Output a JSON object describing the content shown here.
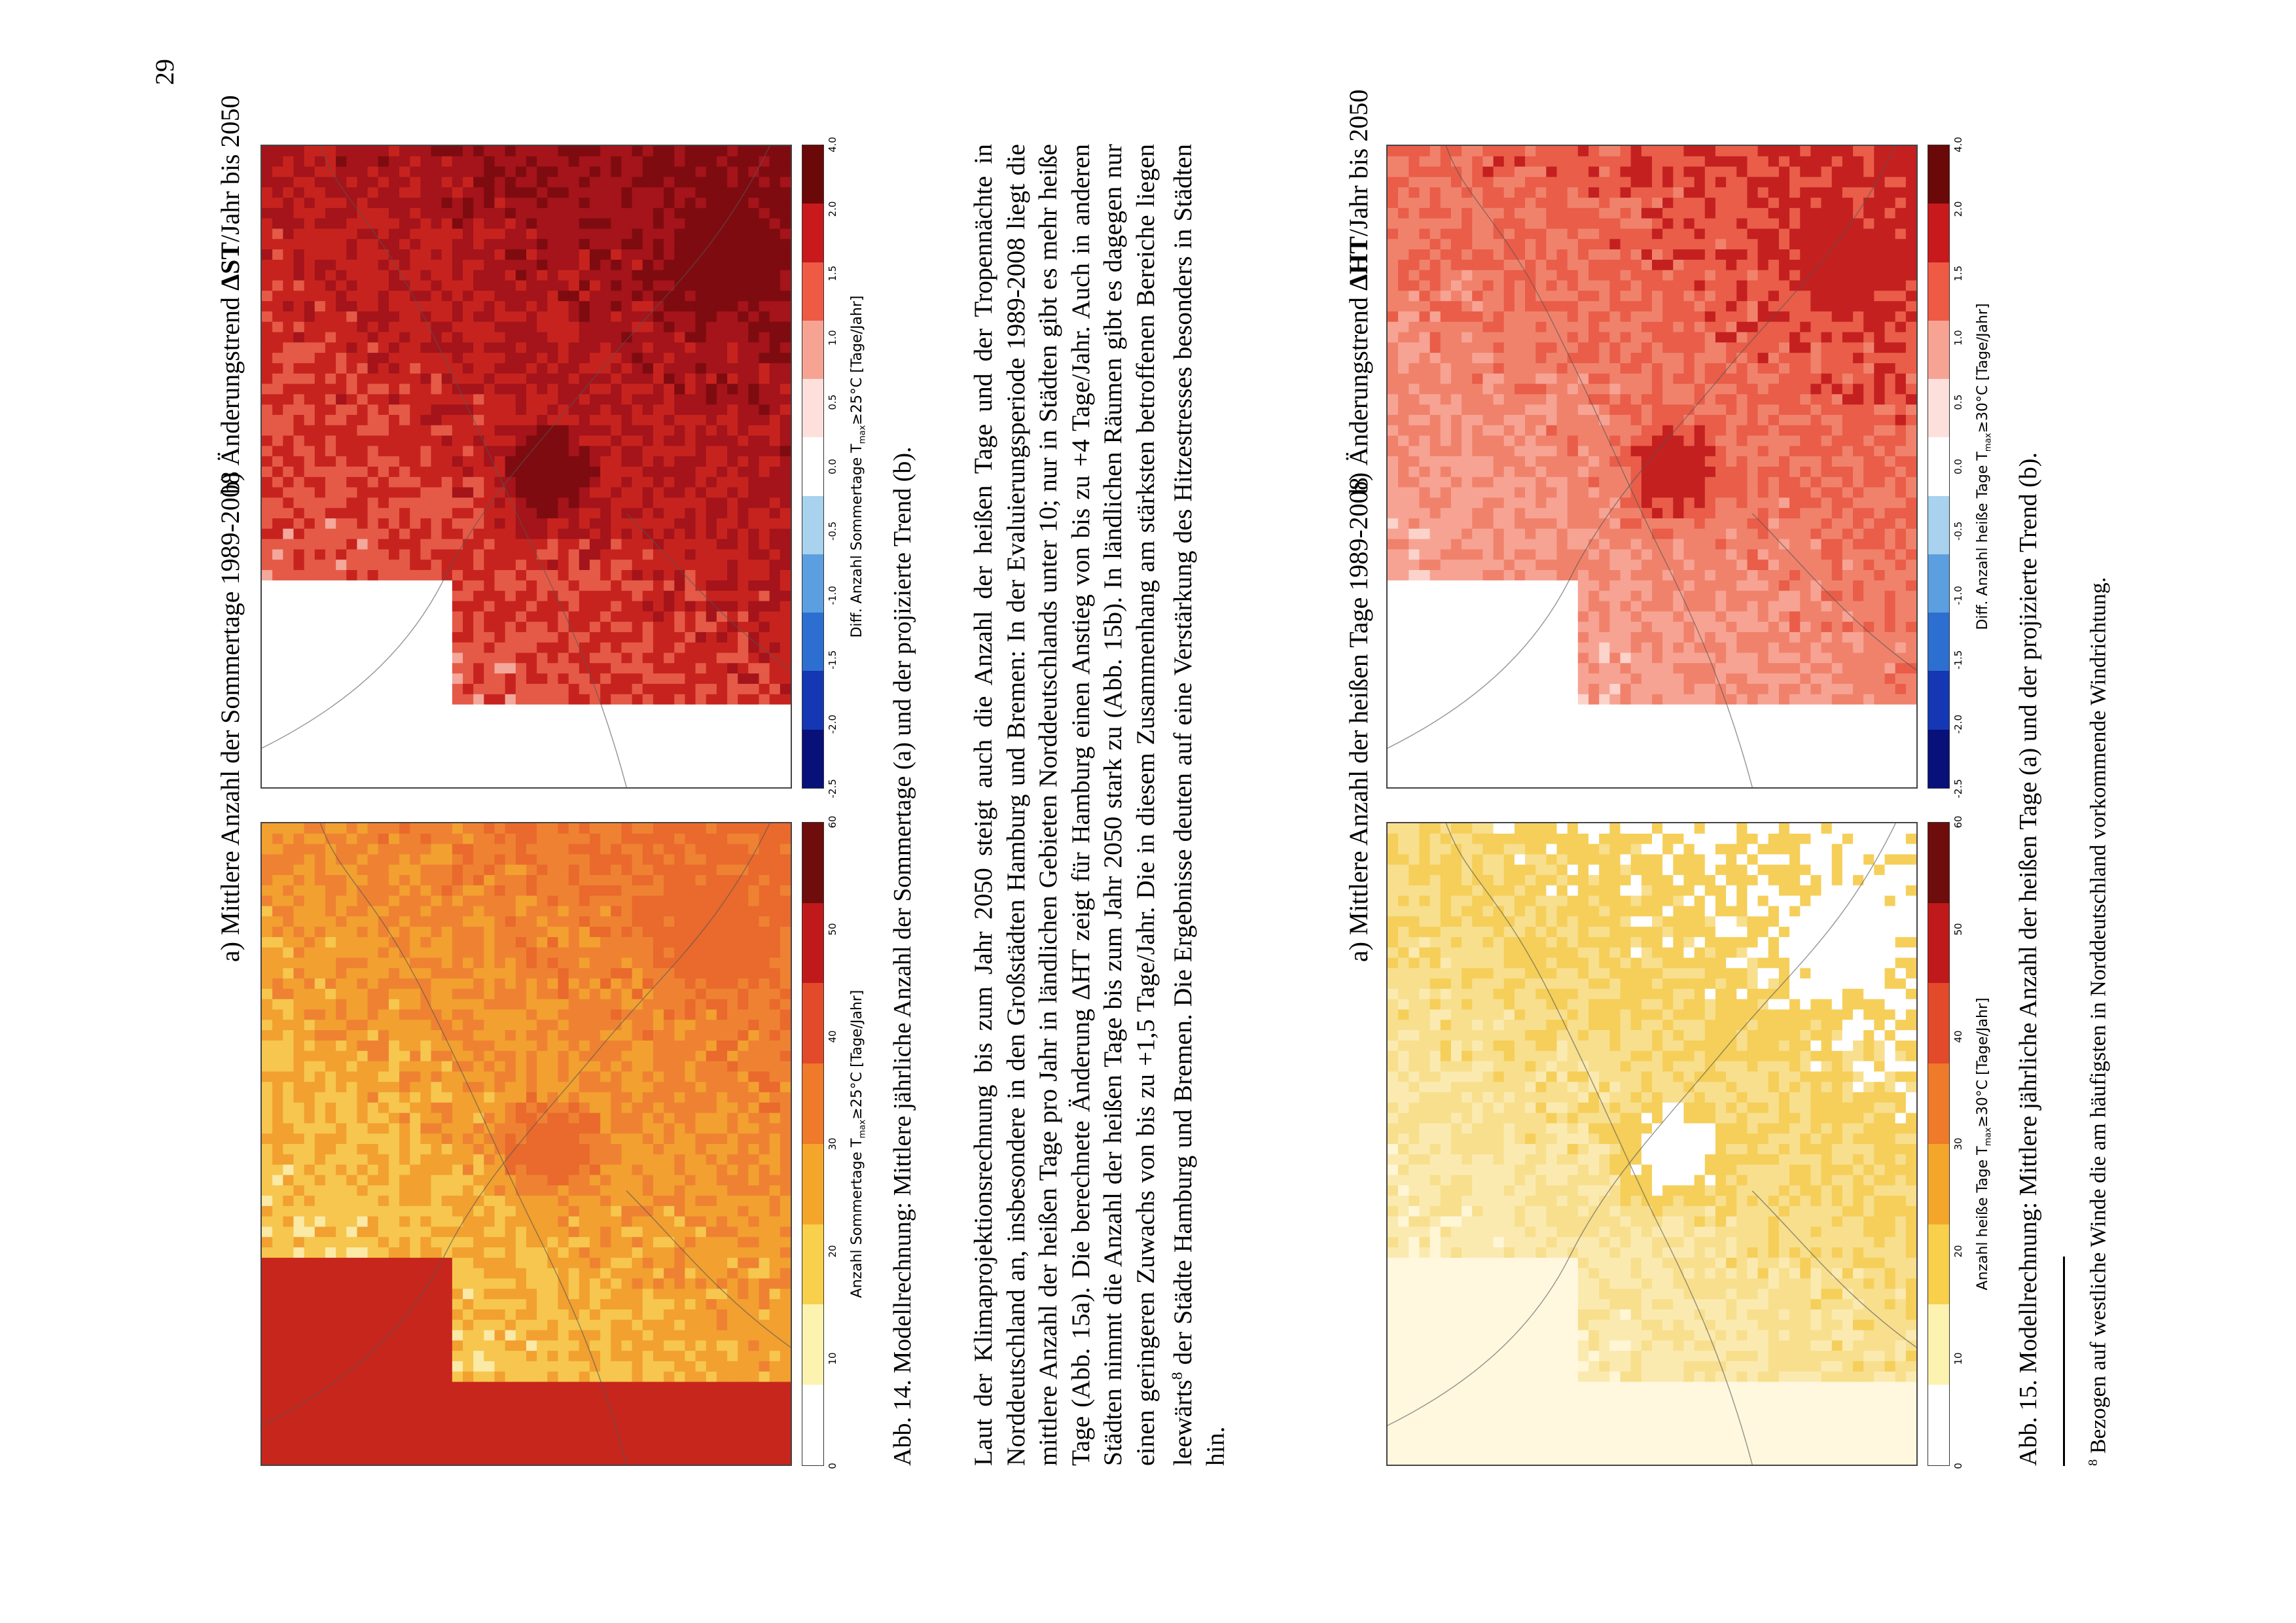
{
  "page_number": "29",
  "fig14": {
    "a_title": "a) Mittlere Anzahl der Sommertage 1989-2008",
    "b_title_pre": "b) Änderungstrend ",
    "b_title_delta": "ΔST",
    "b_title_post": "/Jahr bis 2050",
    "a_colorbar": {
      "label_pre": "Anzahl Sommertage T",
      "label_sub": "max",
      "label_post": "≥25°C [Tage/Jahr]",
      "ticks": [
        "0",
        "10",
        "20",
        "30",
        "40",
        "50",
        "60"
      ],
      "colors": [
        "#ffffff",
        "#fdf3b0",
        "#f8d04c",
        "#f4a62a",
        "#ef7a2a",
        "#e24a2a",
        "#c0191b",
        "#6f0c0c"
      ]
    },
    "b_colorbar": {
      "label_pre": "Diff. Anzahl Sommertage T",
      "label_sub": "max",
      "label_post": "≥25°C [Tage/Jahr]",
      "ticks": [
        "-2.5",
        "-2.0",
        "-1.5",
        "-1.0",
        "-0.5",
        "0.0",
        "0.5",
        "1.0",
        "1.5",
        "2.0",
        "4.0"
      ],
      "colors": [
        "#08107a",
        "#1537b4",
        "#2d6fd0",
        "#5c9fe0",
        "#a8d2ee",
        "#ffffff",
        "#fde0dc",
        "#f7a393",
        "#ef5a45",
        "#c8191c",
        "#6b0808"
      ]
    },
    "caption": "Abb. 14. Modellrechnung: Mittlere jährliche Anzahl der Sommertage (a) und der projizierte Trend (b)."
  },
  "body": {
    "p1": "Laut der Klimaprojektionsrechnung bis zum Jahr 2050 steigt auch die Anzahl der heißen Tage und der Tropennächte in Norddeutschland an, insbesondere in den Großstädten Hamburg und Bremen: In der Evaluierungsperiode 1989-2008 liegt die mittlere Anzahl der heißen Tage pro Jahr in ländlichen Gebieten Norddeutschlands unter 10; nur in Städten gibt es mehr heiße Tage (Abb. 15a). Die berechnete Änderung ΔHT zeigt für Hamburg einen Anstieg von bis zu +4 Tage/Jahr. Auch in anderen Städten nimmt die Anzahl der heißen Tage bis zum Jahr 2050 stark zu (Abb. 15b). In ländlichen Räumen gibt es dagegen nur einen geringeren Zuwachs von bis zu +1,5 Tage/Jahr. Die in diesem Zusammenhang am stärksten betroffenen Bereiche liegen leewärts",
    "p1_sup": "8",
    "p1_end": " der Städte Hamburg und Bremen. Die Ergebnisse deuten auf eine Verstärkung des Hitzestresses besonders in Städten hin."
  },
  "fig15": {
    "a_title": "a) Mittlere Anzahl der heißen Tage 1989-2008",
    "b_title_pre": "b) Änderungstrend ",
    "b_title_delta": "ΔHT",
    "b_title_post": "/Jahr bis 2050",
    "a_colorbar": {
      "label_pre": "Anzahl heiße Tage T",
      "label_sub": "max",
      "label_post": "≥30°C [Tage/Jahr]",
      "ticks": [
        "0",
        "10",
        "20",
        "30",
        "40",
        "50",
        "60"
      ],
      "colors": [
        "#ffffff",
        "#fdf3b0",
        "#f8d04c",
        "#f4a62a",
        "#ef7a2a",
        "#e24a2a",
        "#c0191b",
        "#6f0c0c"
      ]
    },
    "b_colorbar": {
      "label_pre": "Diff. Anzahl heiße Tage T",
      "label_sub": "max",
      "label_post": "≥30°C [Tage/Jahr]",
      "ticks": [
        "-2.5",
        "-2.0",
        "-1.5",
        "-1.0",
        "-0.5",
        "0.0",
        "0.5",
        "1.0",
        "1.5",
        "2.0",
        "4.0"
      ],
      "colors": [
        "#08107a",
        "#1537b4",
        "#2d6fd0",
        "#5c9fe0",
        "#a8d2ee",
        "#ffffff",
        "#fde0dc",
        "#f7a393",
        "#ef5a45",
        "#c8191c",
        "#6b0808"
      ]
    },
    "caption": "Abb. 15. Modellrechnung: Mittlere jährliche Anzahl der heißen Tage (a) und der projizierte Trend (b)."
  },
  "footnote": {
    "marker": "8",
    "text": " Bezogen auf westliche Winde die am häufigsten in Norddeutschland vorkommende Windrichtung."
  },
  "map_palettes": {
    "fig14a": [
      "#fefcf2",
      "#fbe9a6",
      "#f6c64e",
      "#f2a030",
      "#ee8232",
      "#e96a2c",
      "#c7261c",
      "#7a0c0c"
    ],
    "fig14b": [
      "#fde8e6",
      "#f4a79b",
      "#e55a47",
      "#c7231e",
      "#a4141a",
      "#7e0b10",
      "#ffffff",
      "#fde0dc"
    ],
    "fig15a": [
      "#ffffff",
      "#fff6d6",
      "#fbeab0",
      "#f8df8e",
      "#f5cf59",
      "#ffffff",
      "#fff8df",
      "#f7d66c"
    ],
    "fig15b": [
      "#fde8e6",
      "#fbd3ca",
      "#f7a393",
      "#f0826c",
      "#e95d49",
      "#c42020",
      "#ffffff",
      "#fbe2dd"
    ]
  }
}
